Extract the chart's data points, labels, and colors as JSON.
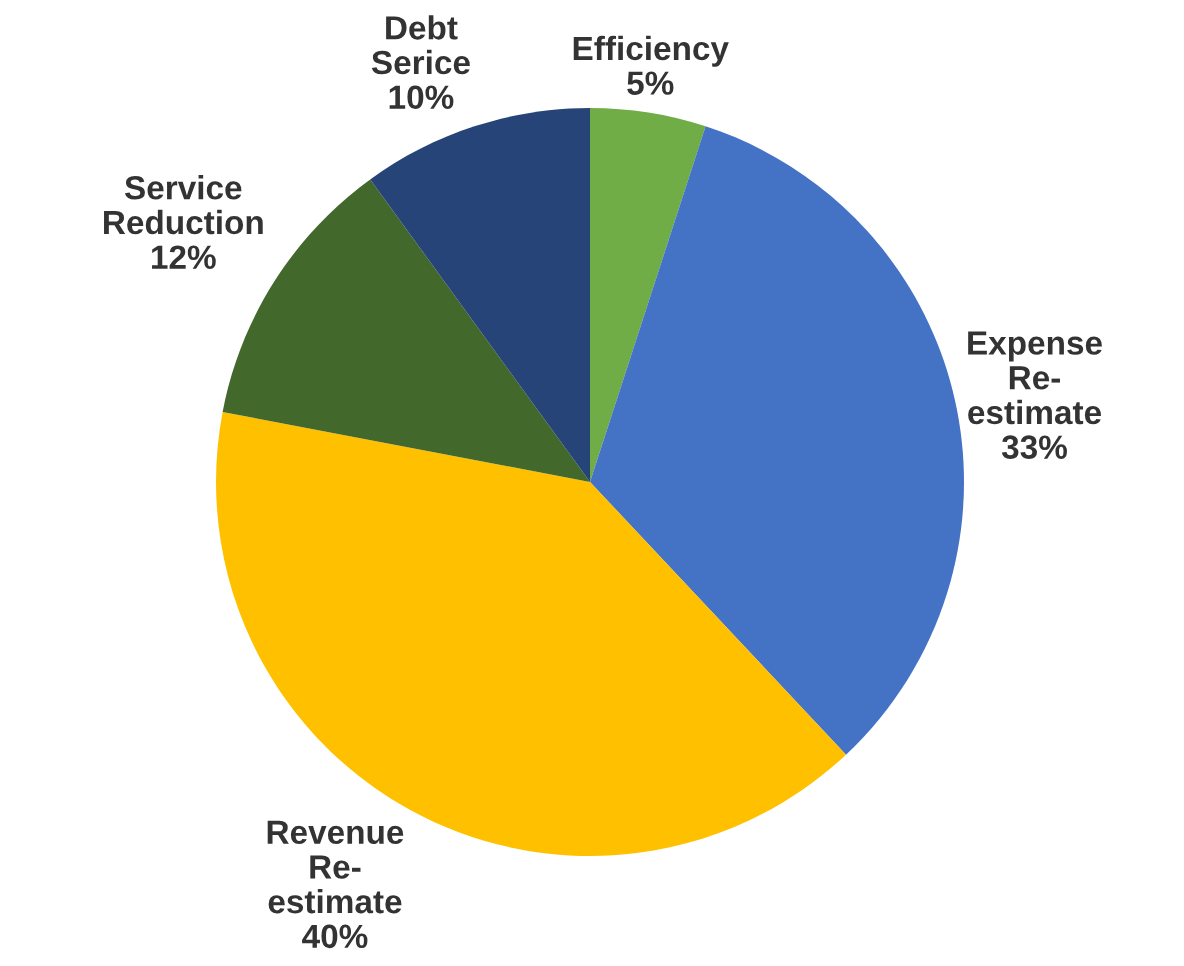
{
  "chart_data": {
    "type": "pie",
    "categories": [
      "Efficiency",
      "Expense\nRe-\nestimate",
      "Revenue\nRe-\nestimate",
      "Service\nReduction",
      "Debt\nSerice"
    ],
    "values": [
      5,
      33,
      40,
      12,
      10
    ],
    "value_labels": [
      "5%",
      "33%",
      "40%",
      "12%",
      "10%"
    ],
    "colors": [
      "#70ad47",
      "#4472c4",
      "#ffc000",
      "#43682b",
      "#264478"
    ],
    "legend": false
  }
}
